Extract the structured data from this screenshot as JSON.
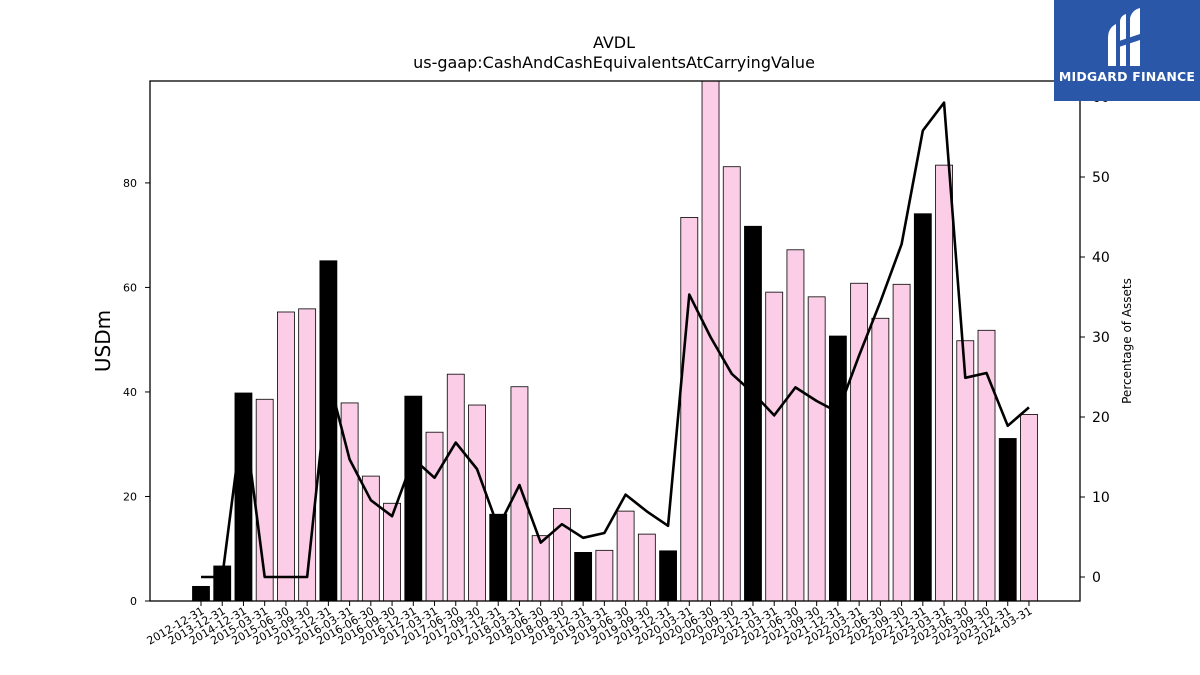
{
  "chart_data": {
    "type": "bar",
    "title": "AVDL",
    "subtitle": "us-gaap:CashAndCashEquivalentsAtCarryingValue",
    "ylabel": "USDm",
    "y2label": "Percentage of Assets",
    "ylim": [
      0,
      99.5
    ],
    "y2lim": [
      -3,
      62
    ],
    "yticks": [
      0,
      20,
      40,
      60,
      80
    ],
    "y2ticks": [
      0,
      10,
      20,
      30,
      40,
      50,
      60
    ],
    "categories": [
      "2012-12-31",
      "2013-12-31",
      "2014-12-31",
      "2015-03-31",
      "2015-06-30",
      "2015-09-30",
      "2015-12-31",
      "2016-03-31",
      "2016-06-30",
      "2016-09-30",
      "2016-12-31",
      "2017-03-31",
      "2017-06-30",
      "2017-09-30",
      "2017-12-31",
      "2018-03-31",
      "2018-06-30",
      "2018-09-30",
      "2018-12-31",
      "2019-03-31",
      "2019-06-30",
      "2019-09-30",
      "2019-12-31",
      "2020-03-31",
      "2020-06-30",
      "2020-09-30",
      "2020-12-31",
      "2021-03-31",
      "2021-06-30",
      "2021-09-30",
      "2021-12-31",
      "2022-03-31",
      "2022-06-30",
      "2022-09-30",
      "2022-12-31",
      "2023-03-31",
      "2023-06-30",
      "2023-09-30",
      "2023-12-31",
      "2024-03-31"
    ],
    "series": [
      {
        "type": "bar",
        "values": [
          2.8,
          6.7,
          39.8,
          38.6,
          55.3,
          55.9,
          65.1,
          37.9,
          23.9,
          18.7,
          39.2,
          32.3,
          43.4,
          37.5,
          16.6,
          41.0,
          12.5,
          17.7,
          9.3,
          9.7,
          17.2,
          12.8,
          9.6,
          73.4,
          99.5,
          83.1,
          71.7,
          59.1,
          67.2,
          58.2,
          50.7,
          60.8,
          54.1,
          60.6,
          74.1,
          83.4,
          49.8,
          51.8,
          31.1,
          35.7
        ],
        "annual": [
          true,
          true,
          true,
          false,
          false,
          false,
          true,
          false,
          false,
          false,
          true,
          false,
          false,
          false,
          true,
          false,
          false,
          false,
          true,
          false,
          false,
          false,
          true,
          false,
          false,
          false,
          true,
          false,
          false,
          false,
          true,
          false,
          false,
          false,
          true,
          false,
          false,
          false,
          true,
          false
        ]
      },
      {
        "type": "line",
        "axis": "right",
        "values": [
          0,
          0,
          20.5,
          0,
          0,
          0,
          25.0,
          14.7,
          9.6,
          7.6,
          14.8,
          12.4,
          16.8,
          13.5,
          6.2,
          11.5,
          4.3,
          6.6,
          4.9,
          5.5,
          10.3,
          8.2,
          6.4,
          35.3,
          30.0,
          25.4,
          23.0,
          20.2,
          23.7,
          22.0,
          20.6,
          27.7,
          34.4,
          41.6,
          55.8,
          59.3,
          24.9,
          25.5,
          18.9,
          21.2
        ]
      }
    ],
    "colors": {
      "annual_bar": "#000000",
      "quarter_bar": "#fbcde6",
      "line": "#000000"
    }
  },
  "logo": {
    "text": "MIDGARD FINANCE"
  }
}
